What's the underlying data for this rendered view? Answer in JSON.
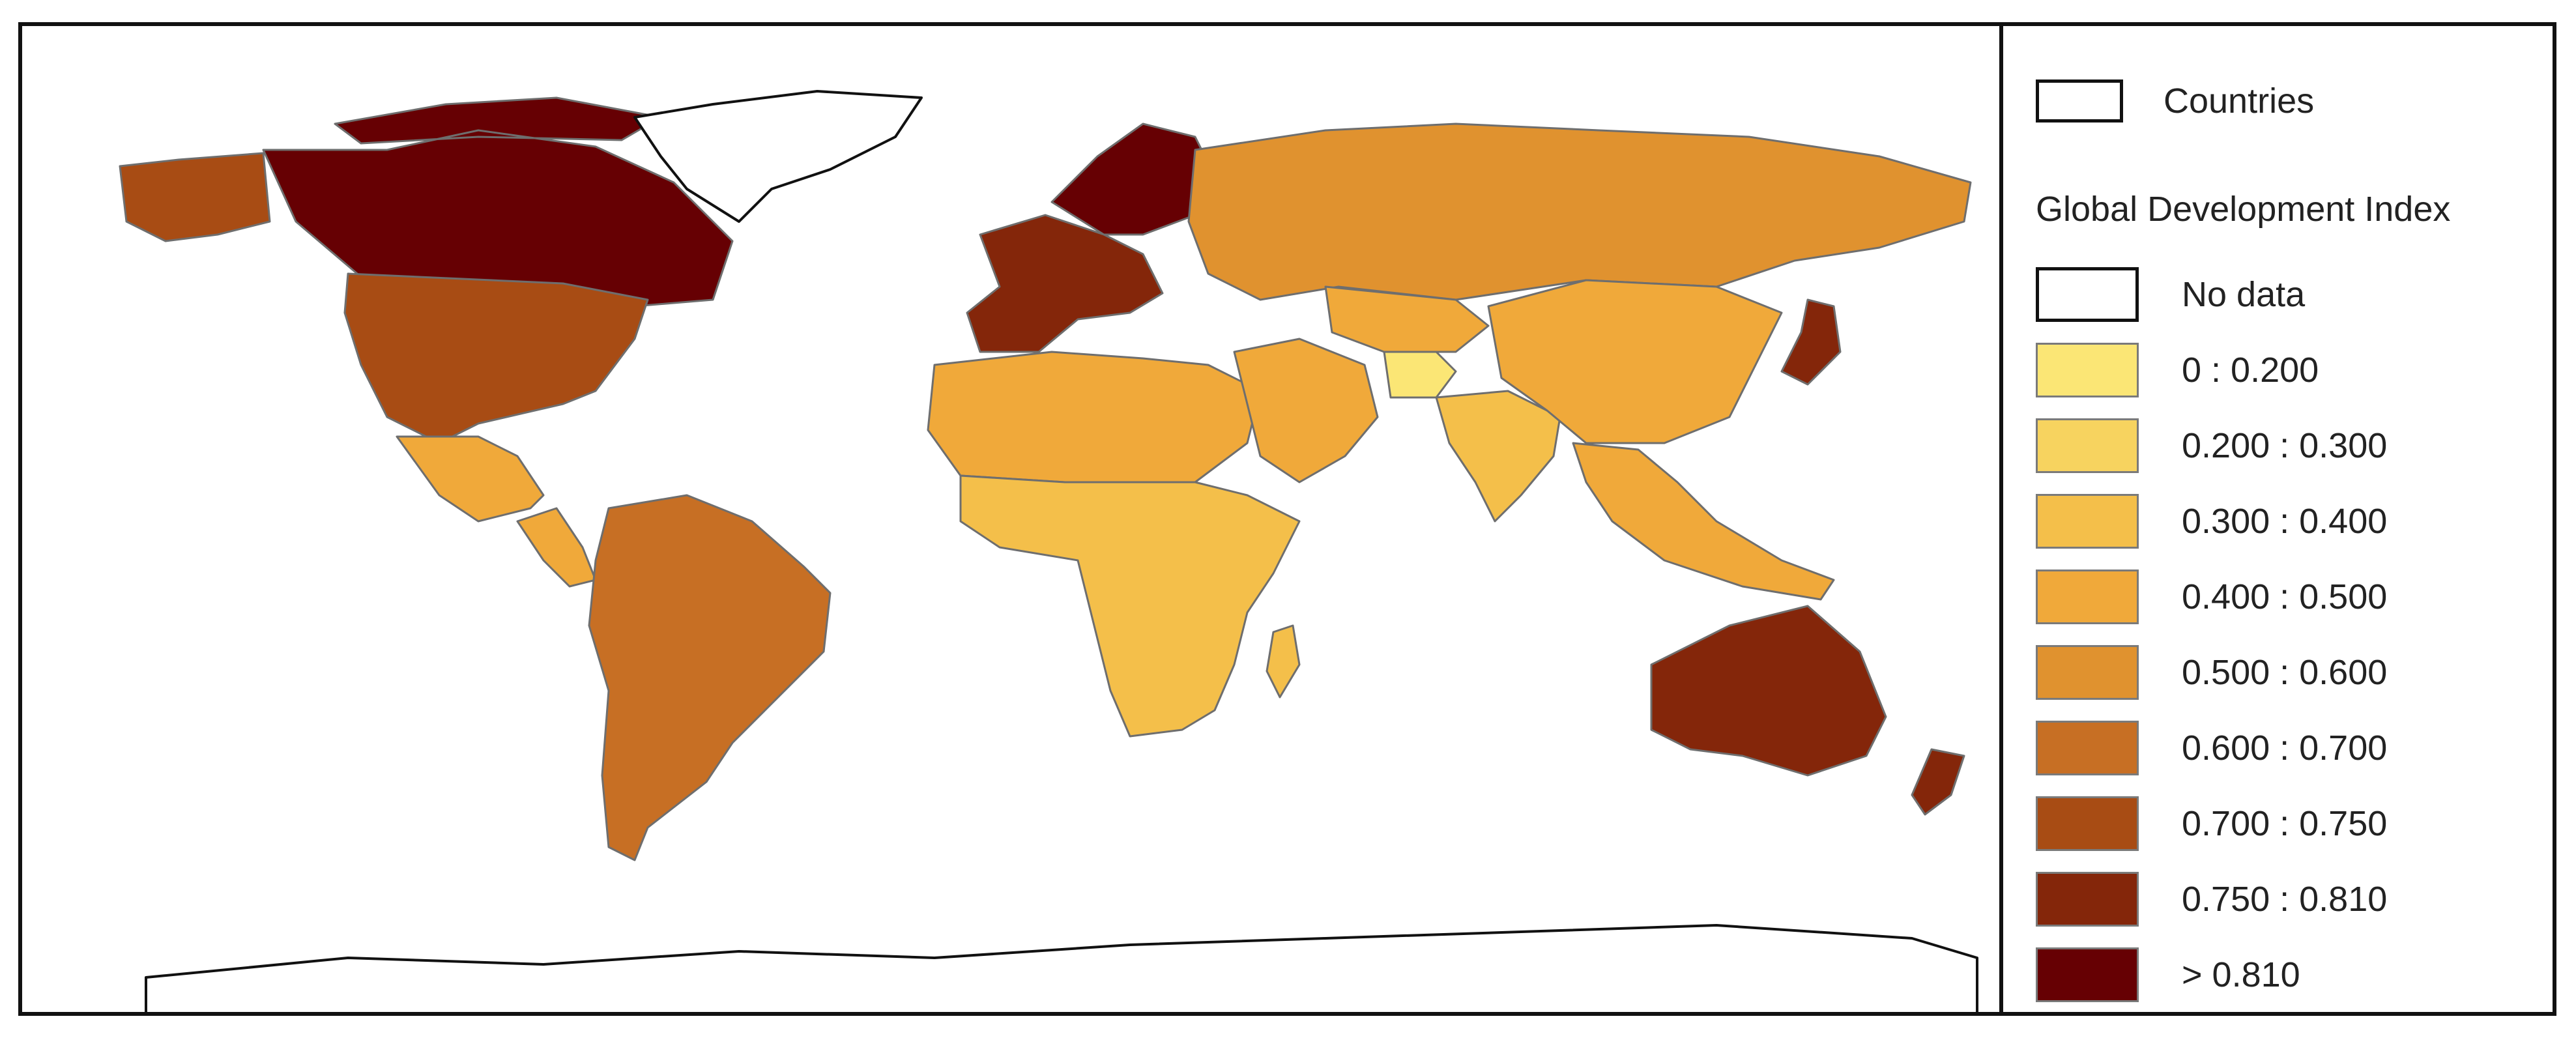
{
  "legend": {
    "countries_label": "Countries",
    "title": "Global Development Index",
    "classes": [
      {
        "label": "No data",
        "color": "#ffffff"
      },
      {
        "label": "0 : 0.200",
        "color": "#fbe675"
      },
      {
        "label": "0.200 : 0.300",
        "color": "#f7d35f"
      },
      {
        "label": "0.300 : 0.400",
        "color": "#f4bf4a"
      },
      {
        "label": "0.400 : 0.500",
        "color": "#f0a93a"
      },
      {
        "label": "0.500 : 0.600",
        "color": "#e0922f"
      },
      {
        "label": "0.600 : 0.700",
        "color": "#c76f24"
      },
      {
        "label": "0.700 : 0.750",
        "color": "#a84c14"
      },
      {
        "label": "0.750 : 0.810",
        "color": "#84260a"
      },
      {
        "label": "> 0.810",
        "color": "#660003"
      }
    ]
  },
  "regions": [
    {
      "name": "canada",
      "class": "> 0.810"
    },
    {
      "name": "usa",
      "class": "0.700 : 0.750"
    },
    {
      "name": "alaska",
      "class": "0.700 : 0.750"
    },
    {
      "name": "greenland",
      "class": "No data"
    },
    {
      "name": "mexico",
      "class": "0.400 : 0.500"
    },
    {
      "name": "central-america",
      "class": "0.400 : 0.500"
    },
    {
      "name": "south-america",
      "class": "0.600 : 0.700"
    },
    {
      "name": "western-europe",
      "class": "0.750 : 0.810"
    },
    {
      "name": "scandinavia",
      "class": "> 0.810"
    },
    {
      "name": "russia",
      "class": "0.500 : 0.600"
    },
    {
      "name": "north-africa",
      "class": "0.400 : 0.500"
    },
    {
      "name": "sub-saharan-africa",
      "class": "0.300 : 0.400"
    },
    {
      "name": "middle-east",
      "class": "0.400 : 0.500"
    },
    {
      "name": "afghanistan",
      "class": "0 : 0.200"
    },
    {
      "name": "central-asia",
      "class": "0.400 : 0.500"
    },
    {
      "name": "india",
      "class": "0.300 : 0.400"
    },
    {
      "name": "china",
      "class": "0.400 : 0.500"
    },
    {
      "name": "japan",
      "class": "0.750 : 0.810"
    },
    {
      "name": "southeast-asia",
      "class": "0.400 : 0.500"
    },
    {
      "name": "australia",
      "class": "0.750 : 0.810"
    },
    {
      "name": "new-zealand",
      "class": "0.750 : 0.810"
    },
    {
      "name": "madagascar",
      "class": "0.300 : 0.400"
    },
    {
      "name": "antarctica",
      "class": "No data"
    }
  ]
}
